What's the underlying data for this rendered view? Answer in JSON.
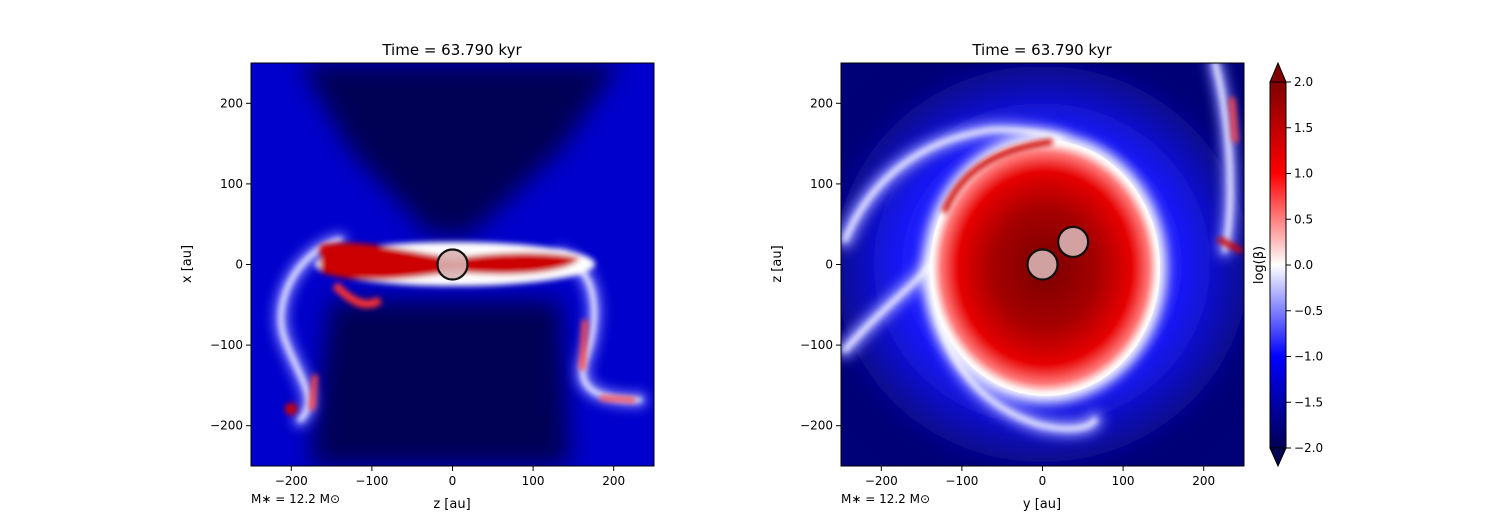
{
  "chart_data": [
    {
      "type": "heatmap",
      "title": "Time = 63.790 kyr",
      "xlabel": "z [au]",
      "ylabel": "x [au]",
      "xlim": [
        -250,
        250
      ],
      "ylim": [
        -250,
        250
      ],
      "xticks": [
        "−200",
        "−100",
        "0",
        "100",
        "200"
      ],
      "xtick_values": [
        -200,
        -100,
        0,
        100,
        200
      ],
      "yticks": [
        "−200",
        "−100",
        "0",
        "100",
        "200"
      ],
      "ytick_values": [
        -200,
        -100,
        0,
        100,
        200
      ],
      "annotation": "M$_*$ = 12.2 M$_\\odot$",
      "annotation_text": "M∗ = 12.2 M⊙",
      "sinks": [
        {
          "x": 0,
          "y": 0
        }
      ],
      "field": "log(β)",
      "structure": "edge-on: thin high-β (red) disk along z-axis at x≈0 extending to |z|≈150, low-β (dark blue) outflow cavities above and below, blue/white magnetized envelope at large |z|"
    },
    {
      "type": "heatmap",
      "title": "Time = 63.790 kyr",
      "xlabel": "y [au]",
      "ylabel": "z [au]",
      "xlim": [
        -250,
        250
      ],
      "ylim": [
        -250,
        250
      ],
      "xticks": [
        "−200",
        "−100",
        "0",
        "100",
        "200"
      ],
      "xtick_values": [
        -200,
        -100,
        0,
        100,
        200
      ],
      "yticks": [
        "−200",
        "−100",
        "0",
        "100",
        "200"
      ],
      "ytick_values": [
        -200,
        -100,
        0,
        100,
        200
      ],
      "annotation": "M$_*$ = 12.2 M$_\\odot$",
      "annotation_text": "M∗ = 12.2 M⊙",
      "sinks": [
        {
          "x": 0,
          "y": 0
        },
        {
          "x": 38,
          "y": 28
        }
      ],
      "field": "log(β)",
      "structure": "face-on: large high-β (red) disk of radius ≈120 au centred on origin, spiral low-β/white arms wrapping around, dark blue background"
    }
  ],
  "colorbar": {
    "label": "log(β)",
    "range": [
      -2.0,
      2.0
    ],
    "extend": "both",
    "colors": [
      "#000055",
      "#0000ff",
      "#ffffff",
      "#ff0000",
      "#800000"
    ],
    "ticks": [
      "−2.0",
      "−1.5",
      "−1.0",
      "−0.5",
      "0.0",
      "0.5",
      "1.0",
      "1.5",
      "2.0"
    ],
    "tick_values": [
      -2.0,
      -1.5,
      -1.0,
      -0.5,
      0.0,
      0.5,
      1.0,
      1.5,
      2.0
    ]
  }
}
